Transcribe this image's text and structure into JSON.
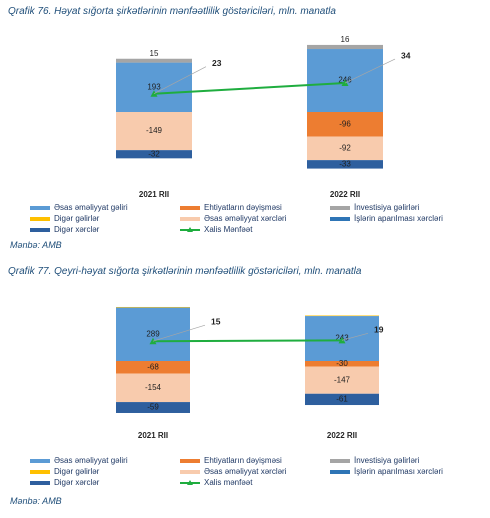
{
  "source": "Mənbə: AMB",
  "chart_data": [
    {
      "type": "bar",
      "title": "Qrafik 76. Həyat sığorta şirkətlərinin mənfəətlilik göstəriciləri, mln. manatla",
      "categories": [
        "2021 RII",
        "2022 RII"
      ],
      "series": [
        {
          "name": "Əsas əməliyyat gəliri",
          "values": [
            193,
            246
          ],
          "color": "#5b9bd5"
        },
        {
          "name": "Ehtiyatların dəyişməsi",
          "values": [
            0,
            -96
          ],
          "color": "#ed7d31"
        },
        {
          "name": "İnvestisiya gəlirləri",
          "values": [
            15,
            16
          ],
          "color": "#a5a5a5"
        },
        {
          "name": "Digər gəlirlər",
          "values": [
            0,
            0
          ],
          "color": "#ffc000"
        },
        {
          "name": "Əsas əməliyyat xərcləri",
          "values": [
            -149,
            -92
          ],
          "color": "#f8cbad"
        },
        {
          "name": "İşlərin aparılması xərcləri",
          "values": [
            0,
            0
          ],
          "color": "#2e75b6"
        },
        {
          "name": "Digər xərclər",
          "values": [
            -32,
            -33
          ],
          "color": "#2e5f9e"
        },
        {
          "name": "Xalis Mənfəət",
          "values": [
            23,
            34
          ],
          "color": "#1fad3f",
          "type": "line"
        }
      ],
      "bar_labels": [
        [
          "15",
          "193",
          "-149",
          "-32"
        ],
        [
          "16",
          "246",
          "-96",
          "-92",
          "-33"
        ]
      ]
    },
    {
      "type": "bar",
      "title": "Qrafik 77. Qeyri-həyat sığorta şirkətlərinin mənfəətlilik göstəriciləri, mln. manatla",
      "categories": [
        "2021 RII",
        "2022 RII"
      ],
      "series": [
        {
          "name": "Əsas əməliyyat gəliri",
          "values": [
            289,
            243
          ],
          "color": "#5b9bd5"
        },
        {
          "name": "Ehtiyatların dəyişməsi",
          "values": [
            -68,
            -30
          ],
          "color": "#ed7d31"
        },
        {
          "name": "İnvestisiya gəlirləri",
          "values": [
            0,
            0
          ],
          "color": "#a5a5a5"
        },
        {
          "name": "Digər gəlirlər",
          "values": [
            3,
            3
          ],
          "color": "#ffc000"
        },
        {
          "name": "Əsas əməliyyat xərcləri",
          "values": [
            -154,
            -147
          ],
          "color": "#f8cbad"
        },
        {
          "name": "İşlərin aparılması xərcləri",
          "values": [
            0,
            0
          ],
          "color": "#2e75b6"
        },
        {
          "name": "Digər xərclər",
          "values": [
            -59,
            -61
          ],
          "color": "#2e5f9e"
        },
        {
          "name": "Xalis mənfəət",
          "values": [
            15,
            19
          ],
          "color": "#1fad3f",
          "type": "line"
        }
      ],
      "bar_labels": [
        [
          "289",
          "-68",
          "-154",
          "-59"
        ],
        [
          "243",
          "-30",
          "-147",
          "-61"
        ]
      ]
    }
  ]
}
